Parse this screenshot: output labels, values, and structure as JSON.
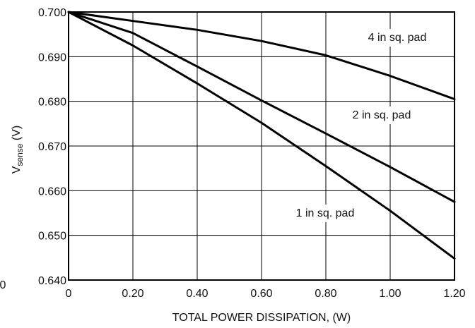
{
  "chart_data": {
    "type": "line",
    "xlabel": "TOTAL POWER DISSIPATION, (W)",
    "ylabel_main": "V",
    "ylabel_sub": "sense",
    "ylabel_unit": " (V)",
    "xlim": [
      0,
      1.2
    ],
    "ylim": [
      0.64,
      0.7
    ],
    "x_ticks": [
      0,
      0.2,
      0.4,
      0.6,
      0.8,
      1.0,
      1.2
    ],
    "x_tick_labels": [
      "0",
      "0.20",
      "0.40",
      "0.60",
      "0.80",
      "1.00",
      "1.20"
    ],
    "y_ticks": [
      0.64,
      0.65,
      0.66,
      0.67,
      0.68,
      0.69,
      0.7
    ],
    "y_tick_labels": [
      "0.640",
      "0.650",
      "0.660",
      "0.670",
      "0.680",
      "0.690",
      "0.700"
    ],
    "left_edge_label": "0",
    "grid": true,
    "series": [
      {
        "name": "4 in sq. pad",
        "x": [
          0,
          0.2,
          0.4,
          0.6,
          0.8,
          1.0,
          1.2
        ],
        "y": [
          0.7,
          0.698,
          0.696,
          0.6935,
          0.6903,
          0.6857,
          0.6805
        ]
      },
      {
        "name": "2 in sq. pad",
        "x": [
          0,
          0.2,
          0.4,
          0.6,
          0.8,
          1.0,
          1.2
        ],
        "y": [
          0.7,
          0.6953,
          0.6878,
          0.6802,
          0.6728,
          0.6653,
          0.6575
        ]
      },
      {
        "name": "1 in sq. pad",
        "x": [
          0,
          0.2,
          0.4,
          0.6,
          0.8,
          1.0,
          1.2
        ],
        "y": [
          0.7,
          0.6925,
          0.684,
          0.6752,
          0.6655,
          0.6555,
          0.6448
        ]
      }
    ]
  }
}
